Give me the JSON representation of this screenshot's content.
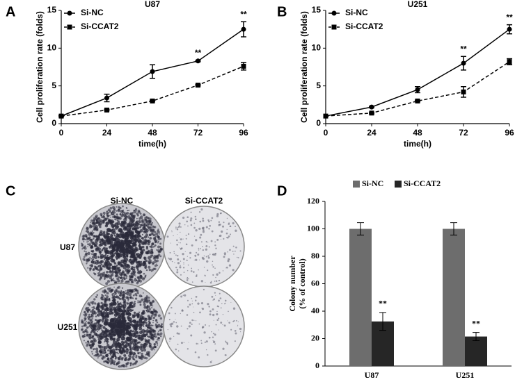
{
  "panel_labels": [
    "A",
    "B",
    "C",
    "D"
  ],
  "panel_c": {
    "columns": [
      "Si-NC",
      "Si-CCAT2"
    ],
    "rows": [
      "U87",
      "U251"
    ]
  },
  "chart_data": [
    {
      "type": "line",
      "title": "U87",
      "xlabel": "time(h)",
      "ylabel": "Cell proliferation rate (folds)",
      "x": [
        0,
        24,
        48,
        72,
        96
      ],
      "xlim": [
        0,
        96
      ],
      "xticks": [
        0,
        24,
        48,
        72,
        96
      ],
      "ylim": [
        0,
        15
      ],
      "yticks": [
        0,
        5,
        10,
        15
      ],
      "legend": "upper left",
      "series": [
        {
          "name": "Si-NC",
          "color": "#000000",
          "marker": "circle",
          "dashed": false,
          "values": [
            1,
            3.4,
            6.9,
            8.3,
            12.5
          ],
          "errors": [
            0.1,
            0.5,
            0.9,
            0.1,
            1.0
          ],
          "annotations": [
            null,
            null,
            null,
            "**",
            "**"
          ]
        },
        {
          "name": "Si-CCAT2",
          "color": "#000000",
          "marker": "square",
          "dashed": true,
          "values": [
            1,
            1.8,
            3.0,
            5.1,
            7.6
          ],
          "errors": [
            0,
            0.1,
            0.1,
            0.1,
            0.5
          ]
        }
      ]
    },
    {
      "type": "line",
      "title": "U251",
      "xlabel": "time(h)",
      "ylabel": "Cell proliferation rate (folds)",
      "x": [
        0,
        24,
        48,
        72,
        96
      ],
      "xlim": [
        0,
        96
      ],
      "xticks": [
        0,
        24,
        48,
        72,
        96
      ],
      "ylim": [
        0,
        15
      ],
      "yticks": [
        0,
        5,
        10,
        15
      ],
      "legend": "upper left",
      "series": [
        {
          "name": "Si-NC",
          "color": "#000000",
          "marker": "circle",
          "dashed": false,
          "values": [
            1,
            2.2,
            4.5,
            8.0,
            12.5
          ],
          "errors": [
            0,
            0.1,
            0.4,
            0.9,
            0.6
          ],
          "annotations": [
            null,
            null,
            null,
            "**",
            "**"
          ]
        },
        {
          "name": "Si-CCAT2",
          "color": "#000000",
          "marker": "square",
          "dashed": true,
          "values": [
            1,
            1.4,
            3.0,
            4.2,
            8.2
          ],
          "errors": [
            0,
            0.1,
            0.1,
            0.7,
            0.4
          ]
        }
      ]
    },
    {
      "type": "bar",
      "ylabel": [
        "Colony number",
        "(% of control)"
      ],
      "categories": [
        "U87",
        "U251"
      ],
      "ylim": [
        0,
        120
      ],
      "yticks": [
        0,
        20,
        40,
        60,
        80,
        100,
        120
      ],
      "legend": "top",
      "series": [
        {
          "name": "Si-NC",
          "color": "#6d6d6d",
          "values": [
            100,
            100
          ],
          "errors": [
            4.5,
            4.5
          ]
        },
        {
          "name": "Si-CCAT2",
          "color": "#262626",
          "values": [
            32.5,
            21.5
          ],
          "errors": [
            6.5,
            3
          ],
          "annotations": [
            "**",
            "**"
          ]
        }
      ]
    }
  ]
}
